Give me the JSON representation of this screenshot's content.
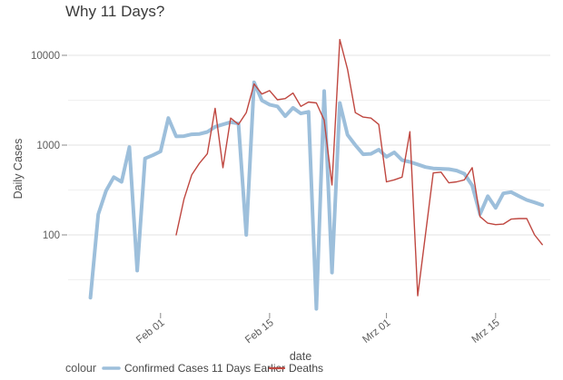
{
  "title": "Why 11 Days?",
  "axes": {
    "y_label": "Daily Cases",
    "x_label": "date",
    "y_ticks": [
      "100",
      "1000",
      "10000"
    ],
    "x_ticks": [
      "Feb 01",
      "Feb 15",
      "Mrz 01",
      "Mrz 15"
    ]
  },
  "legend": {
    "title": "colour",
    "series1": "Confirmed Cases 11 Days Earlier",
    "series2": "Deaths"
  },
  "colors": {
    "confirmed_line": "#9dbfdb",
    "deaths_line": "#bf4740",
    "grid_major": "#e3e3e3",
    "grid_minor": "#f0f0f0",
    "tick_mark": "#888888"
  },
  "chart_data": {
    "type": "line",
    "title": "Why 11 Days?",
    "xlabel": "date",
    "ylabel": "Daily Cases",
    "y_scale": "log10",
    "ylim": [
      13,
      16000
    ],
    "grid": true,
    "legend_position": "bottom",
    "x_unit": "day (daily values, day 0 = Jan 23)",
    "x_tick_days": [
      9,
      23,
      38,
      52
    ],
    "x_tick_labels": [
      "Feb 01",
      "Feb 15",
      "Mrz 01",
      "Mrz 15"
    ],
    "y_tick_values": [
      100,
      1000,
      10000
    ],
    "y_minor_values": [
      31.62,
      316.23,
      3162.3
    ],
    "series": [
      {
        "name": "Confirmed Cases 11 Days Earlier",
        "color": "#9dbfdb",
        "stroke_width": 4,
        "start_date": "Jan 23",
        "start_day": 0,
        "values": [
          20,
          170,
          310,
          440,
          390,
          950,
          40,
          710,
          770,
          850,
          2000,
          1250,
          1260,
          1320,
          1330,
          1400,
          1600,
          1700,
          1800,
          1740,
          100,
          5000,
          3150,
          2820,
          2700,
          2100,
          2600,
          2250,
          2350,
          15,
          4000,
          38,
          2950,
          1300,
          1000,
          790,
          800,
          890,
          740,
          830,
          680,
          650,
          610,
          570,
          550,
          545,
          540,
          520,
          480,
          355,
          170,
          270,
          200,
          290,
          300,
          270,
          245,
          230,
          215
        ]
      },
      {
        "name": "Deaths",
        "color": "#bf4740",
        "stroke_width": 1.4,
        "start_date": "Feb 03",
        "start_day": 11,
        "values": [
          100,
          250,
          465,
          630,
          800,
          2570,
          560,
          2000,
          1700,
          2300,
          4800,
          3700,
          4050,
          3200,
          3300,
          3800,
          2700,
          3020,
          2950,
          1900,
          360,
          15000,
          7000,
          2300,
          2050,
          2000,
          1700,
          390,
          410,
          440,
          1410,
          21,
          100,
          490,
          500,
          380,
          390,
          410,
          560,
          160,
          135,
          130,
          132,
          150,
          152,
          152,
          100,
          78
        ]
      }
    ]
  }
}
